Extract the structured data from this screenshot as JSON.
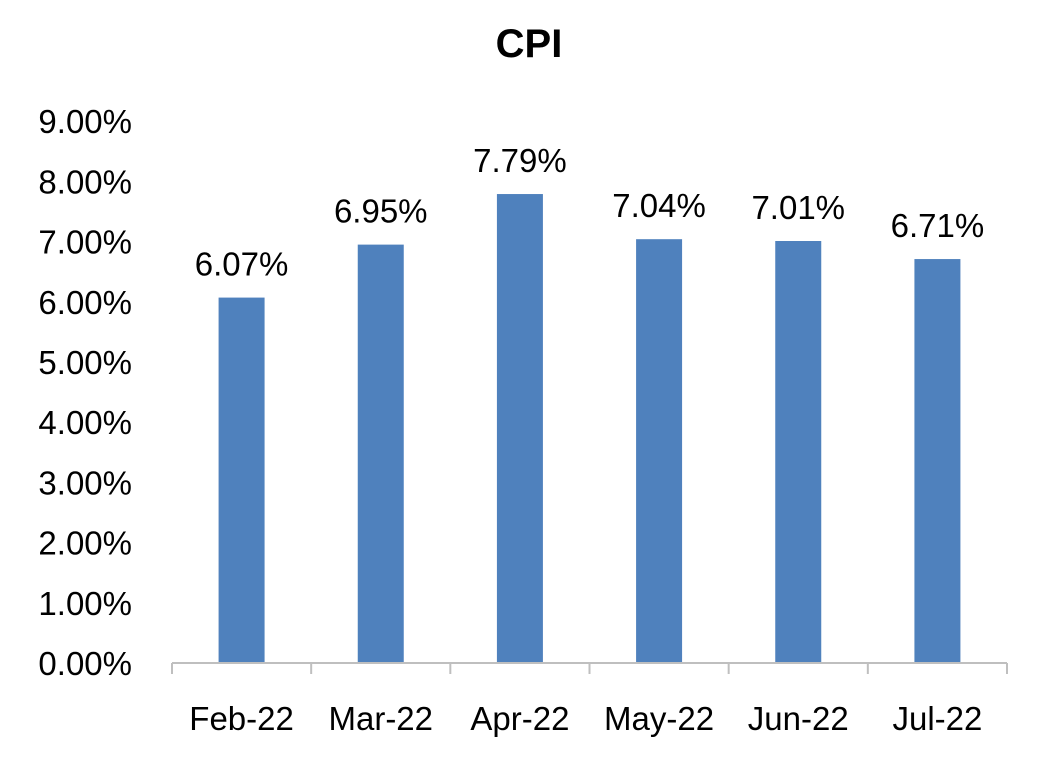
{
  "chart_data": {
    "type": "bar",
    "title": "CPI",
    "xlabel": "",
    "ylabel": "",
    "categories": [
      "Feb-22",
      "Mar-22",
      "Apr-22",
      "May-22",
      "Jun-22",
      "Jul-22"
    ],
    "values": [
      6.07,
      6.95,
      7.79,
      7.04,
      7.01,
      6.71
    ],
    "data_labels": [
      "6.07%",
      "6.95%",
      "7.79%",
      "7.04%",
      "7.01%",
      "6.71%"
    ],
    "y_ticks": [
      0,
      1,
      2,
      3,
      4,
      5,
      6,
      7,
      8,
      9
    ],
    "y_tick_labels": [
      "0.00%",
      "1.00%",
      "2.00%",
      "3.00%",
      "4.00%",
      "5.00%",
      "6.00%",
      "7.00%",
      "8.00%",
      "9.00%"
    ],
    "ylim": [
      0,
      9
    ],
    "grid": false,
    "legend": "none",
    "colors": {
      "bar": "#4f81bd",
      "axis": "#bfbfbf",
      "text": "#000000"
    }
  }
}
